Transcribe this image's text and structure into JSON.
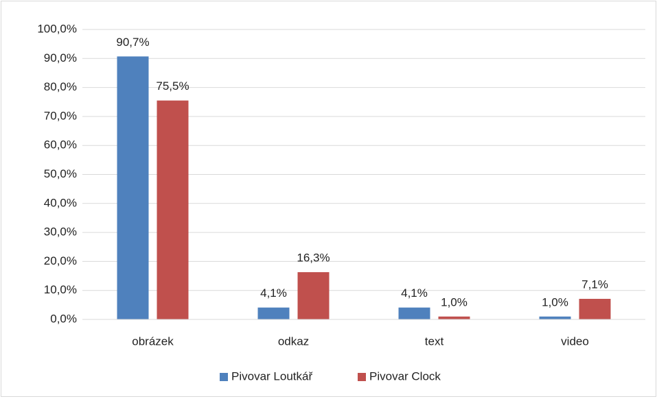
{
  "chart_data": {
    "type": "bar",
    "categories": [
      "obrázek",
      "odkaz",
      "text",
      "video"
    ],
    "series": [
      {
        "name": "Pivovar Loutkář",
        "color": "#4f81bd",
        "values": [
          90.7,
          4.1,
          4.1,
          1.0
        ],
        "value_labels": [
          "90,7%",
          "4,1%",
          "4,1%",
          "1,0%"
        ]
      },
      {
        "name": "Pivovar Clock",
        "color": "#c0504d",
        "values": [
          75.5,
          16.3,
          1.0,
          7.1
        ],
        "value_labels": [
          "75,5%",
          "16,3%",
          "1,0%",
          "7,1%"
        ]
      }
    ],
    "ylim": [
      0,
      100
    ],
    "yticks": [
      {
        "value": 0,
        "label": "0,0%"
      },
      {
        "value": 10,
        "label": "10,0%"
      },
      {
        "value": 20,
        "label": "20,0%"
      },
      {
        "value": 30,
        "label": "30,0%"
      },
      {
        "value": 40,
        "label": "40,0%"
      },
      {
        "value": 50,
        "label": "50,0%"
      },
      {
        "value": 60,
        "label": "60,0%"
      },
      {
        "value": 70,
        "label": "70,0%"
      },
      {
        "value": 80,
        "label": "80,0%"
      },
      {
        "value": 90,
        "label": "90,0%"
      },
      {
        "value": 100,
        "label": "100,0%"
      }
    ],
    "grid": true,
    "legend": "bottom"
  }
}
